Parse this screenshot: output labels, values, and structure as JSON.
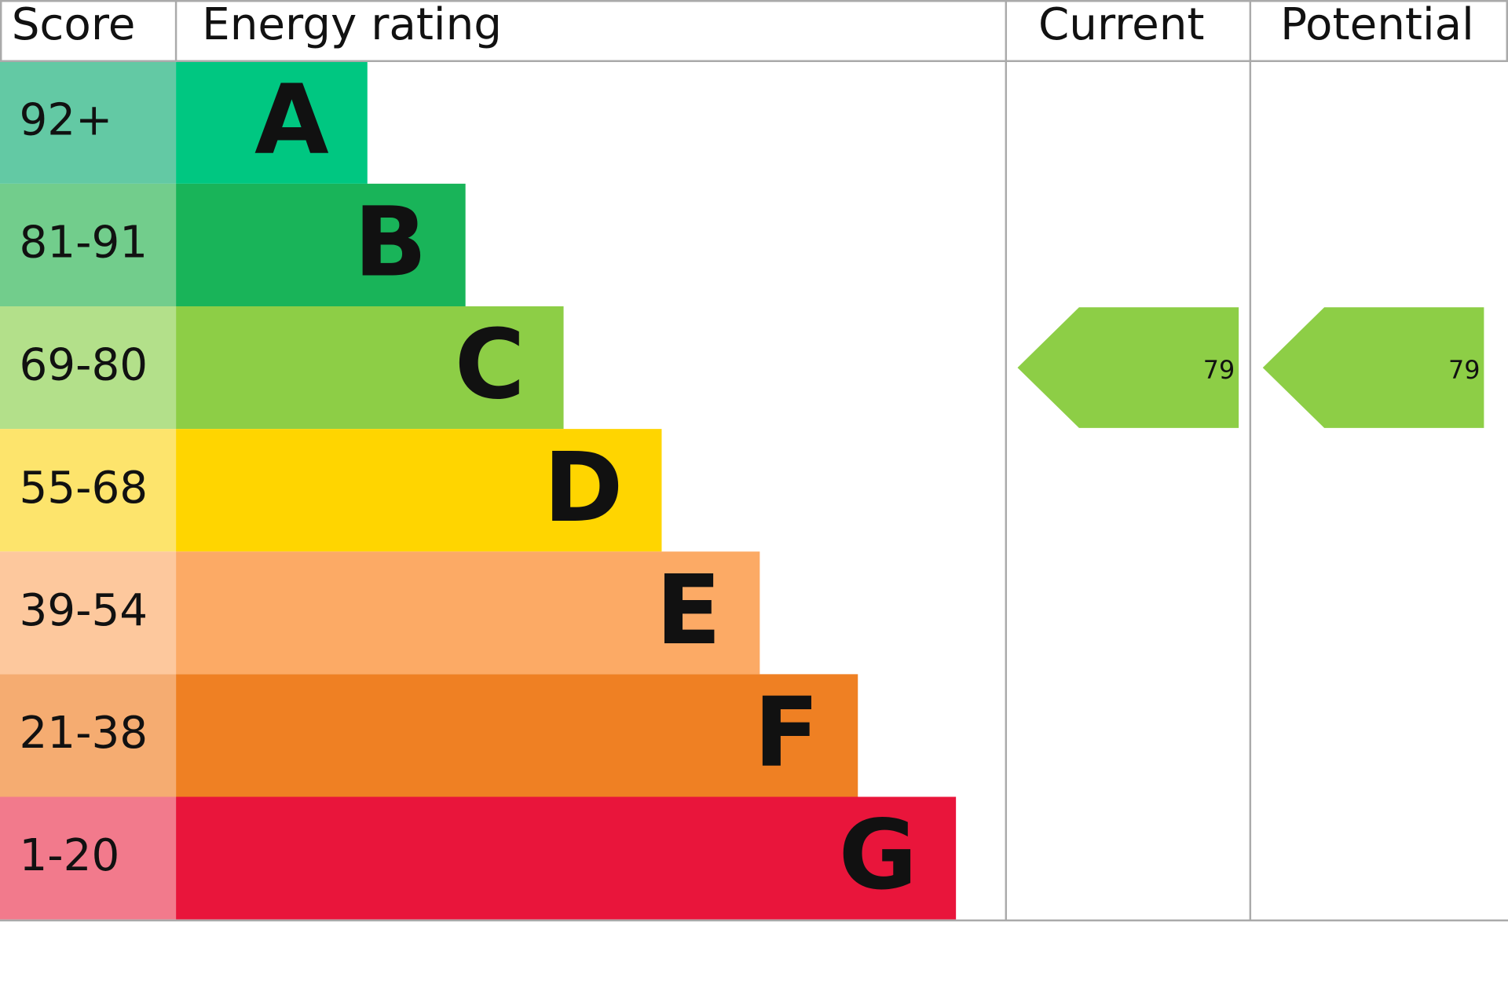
{
  "headers": {
    "score": "Score",
    "rating": "Energy rating",
    "current": "Current",
    "potential": "Potential"
  },
  "bands": [
    {
      "score": "92+",
      "letter": "A",
      "color": "#00c781",
      "score_color": "#63c9a4"
    },
    {
      "score": "81-91",
      "letter": "B",
      "color": "#19b459",
      "score_color": "#72cd8c"
    },
    {
      "score": "69-80",
      "letter": "C",
      "color": "#8dce46",
      "score_color": "#b3e08a"
    },
    {
      "score": "55-68",
      "letter": "D",
      "color": "#ffd500",
      "score_color": "#fde46c"
    },
    {
      "score": "39-54",
      "letter": "E",
      "color": "#fcaa65",
      "score_color": "#fdc89d"
    },
    {
      "score": "21-38",
      "letter": "F",
      "color": "#ef8023",
      "score_color": "#f5ac71"
    },
    {
      "score": "1-20",
      "letter": "G",
      "color": "#e9153b",
      "score_color": "#f27a8c"
    }
  ],
  "current": {
    "value": 79
  },
  "potential": {
    "value": 79
  }
}
